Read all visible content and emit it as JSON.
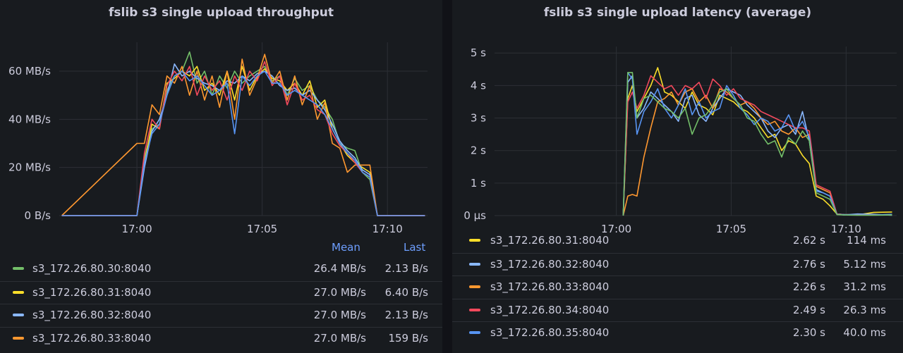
{
  "panels": {
    "throughput": {
      "title": "fslib s3 single upload throughput",
      "legend_headers": {
        "mean": "Mean",
        "last": "Last"
      },
      "legend": [
        {
          "name": "s3_172.26.80.30:8040",
          "mean": "26.4 MB/s",
          "last": "2.13 B/s",
          "color": "#73bf69"
        },
        {
          "name": "s3_172.26.80.31:8040",
          "mean": "27.0 MB/s",
          "last": "6.40 B/s",
          "color": "#fade2a"
        },
        {
          "name": "s3_172.26.80.32:8040",
          "mean": "27.0 MB/s",
          "last": "2.13 B/s",
          "color": "#8ab8ff"
        },
        {
          "name": "s3_172.26.80.33:8040",
          "mean": "27.0 MB/s",
          "last": "159 B/s",
          "color": "#ff9830"
        }
      ]
    },
    "latency": {
      "title": "fslib s3 single upload latency (average)",
      "legend": [
        {
          "name": "s3_172.26.80.31:8040",
          "mean": "2.62 s",
          "last": "114 ms",
          "color": "#fade2a"
        },
        {
          "name": "s3_172.26.80.32:8040",
          "mean": "2.76 s",
          "last": "5.12 ms",
          "color": "#8ab8ff"
        },
        {
          "name": "s3_172.26.80.33:8040",
          "mean": "2.26 s",
          "last": "31.2 ms",
          "color": "#ff9830"
        },
        {
          "name": "s3_172.26.80.34:8040",
          "mean": "2.49 s",
          "last": "26.3 ms",
          "color": "#f2495c"
        },
        {
          "name": "s3_172.26.80.35:8040",
          "mean": "2.30 s",
          "last": "40.0 ms",
          "color": "#5794f2"
        }
      ]
    }
  },
  "chart_data": [
    {
      "type": "line",
      "title": "fslib s3 single upload throughput",
      "xlabel": "",
      "ylabel": "",
      "x_ticks": [
        "17:00",
        "17:05",
        "17:10"
      ],
      "y_ticks": [
        "0 B/s",
        "20 MB/s",
        "40 MB/s",
        "60 MB/s"
      ],
      "y_tick_values": [
        0,
        20,
        40,
        60
      ],
      "ylim": [
        0,
        72
      ],
      "xlim_min": [
        -3.1,
        11.6
      ],
      "x_tick_values": [
        0,
        5,
        10
      ],
      "grid": true,
      "legend_position": "bottom",
      "x": [
        -3,
        0,
        0.3,
        0.6,
        0.9,
        1.2,
        1.5,
        1.8,
        2.1,
        2.4,
        2.7,
        3.0,
        3.3,
        3.6,
        3.9,
        4.2,
        4.5,
        4.8,
        5.1,
        5.4,
        5.7,
        6.0,
        6.3,
        6.6,
        6.9,
        7.2,
        7.5,
        7.8,
        8.1,
        8.4,
        8.7,
        9.0,
        9.3,
        9.6,
        9.9,
        11.5
      ],
      "series": [
        {
          "name": "s3_172.26.80.30:8040",
          "values": [
            0,
            0,
            24,
            36,
            38,
            52,
            58,
            60,
            68,
            55,
            60,
            50,
            58,
            53,
            60,
            55,
            58,
            60,
            62,
            56,
            58,
            50,
            57,
            52,
            54,
            48,
            45,
            40,
            30,
            28,
            27,
            18,
            15,
            0,
            0,
            0
          ]
        },
        {
          "name": "s3_172.26.80.31:8040",
          "values": [
            0,
            0,
            22,
            38,
            36,
            55,
            57,
            60,
            58,
            62,
            52,
            55,
            50,
            60,
            48,
            62,
            52,
            58,
            61,
            57,
            56,
            52,
            55,
            50,
            56,
            45,
            48,
            36,
            30,
            25,
            22,
            20,
            18,
            0,
            0,
            0
          ]
        },
        {
          "name": "s3_172.26.80.32:8040",
          "values": [
            0,
            0,
            20,
            35,
            40,
            50,
            63,
            58,
            60,
            57,
            55,
            54,
            52,
            56,
            55,
            58,
            56,
            59,
            60,
            58,
            54,
            52,
            53,
            50,
            52,
            48,
            44,
            38,
            31,
            27,
            24,
            19,
            17,
            0,
            0,
            0
          ]
        },
        {
          "name": "s3_172.26.80.33:8040",
          "values": [
            0,
            30,
            30,
            46,
            42,
            58,
            55,
            62,
            50,
            60,
            48,
            58,
            45,
            60,
            40,
            65,
            50,
            57,
            67,
            55,
            60,
            48,
            58,
            46,
            54,
            40,
            47,
            30,
            28,
            18,
            21,
            21,
            21,
            0,
            0,
            0
          ]
        },
        {
          "name": "",
          "color": "#f2495c",
          "values": [
            0,
            0,
            26,
            40,
            36,
            54,
            60,
            56,
            62,
            50,
            58,
            52,
            56,
            48,
            58,
            52,
            60,
            56,
            64,
            54,
            58,
            46,
            55,
            48,
            50,
            44,
            42,
            34,
            29,
            26,
            22,
            18,
            16,
            0,
            0,
            0
          ]
        },
        {
          "name": "",
          "color": "#5794f2",
          "values": [
            0,
            0,
            22,
            34,
            38,
            50,
            58,
            60,
            56,
            58,
            54,
            50,
            52,
            55,
            34,
            58,
            54,
            58,
            60,
            55,
            55,
            50,
            52,
            50,
            48,
            46,
            42,
            36,
            30,
            26,
            23,
            18,
            16,
            0,
            0,
            0
          ]
        }
      ]
    },
    {
      "type": "line",
      "title": "fslib s3 single upload latency (average)",
      "xlabel": "",
      "ylabel": "",
      "x_ticks": [
        "17:00",
        "17:05",
        "17:10"
      ],
      "x_tick_values": [
        0,
        5,
        10
      ],
      "y_ticks": [
        "0 µs",
        "1 s",
        "2 s",
        "3 s",
        "4 s",
        "5 s"
      ],
      "y_tick_values": [
        0,
        1,
        2,
        3,
        4,
        5
      ],
      "ylim": [
        0,
        5.2
      ],
      "xlim_min": [
        -5.3,
        12.2
      ],
      "grid": true,
      "legend_position": "bottom",
      "x": [
        0.3,
        0.5,
        0.7,
        0.9,
        1.2,
        1.5,
        1.8,
        2.1,
        2.4,
        2.7,
        3.0,
        3.3,
        3.6,
        3.9,
        4.2,
        4.5,
        4.8,
        5.1,
        5.4,
        5.7,
        6.0,
        6.3,
        6.6,
        6.9,
        7.2,
        7.5,
        7.8,
        8.1,
        8.4,
        8.7,
        9.0,
        9.3,
        9.6,
        9.9,
        10.5,
        11.2,
        12.0
      ],
      "series": [
        {
          "name": "s3_172.26.80.31:8040",
          "values": [
            0,
            3.6,
            4.0,
            3.2,
            3.6,
            4.0,
            4.55,
            3.8,
            3.7,
            3.5,
            3.3,
            3.8,
            3.4,
            3.3,
            3.1,
            3.7,
            3.6,
            3.5,
            3.3,
            3.2,
            3.0,
            2.7,
            2.4,
            2.5,
            2.0,
            2.3,
            2.2,
            1.85,
            1.6,
            0.6,
            0.5,
            0.3,
            0.05,
            0.03,
            0.02,
            0.1,
            0.11
          ]
        },
        {
          "name": "s3_172.26.80.32:8040",
          "values": [
            0,
            4.1,
            4.3,
            3.0,
            3.3,
            3.8,
            3.6,
            3.4,
            3.2,
            2.9,
            3.6,
            3.7,
            3.1,
            2.9,
            3.3,
            3.6,
            3.9,
            3.8,
            3.7,
            3.4,
            3.2,
            3.0,
            2.6,
            2.4,
            2.7,
            2.8,
            2.5,
            3.2,
            2.3,
            0.8,
            0.7,
            0.6,
            0.05,
            0.02,
            0.05,
            0.04,
            0.01
          ]
        },
        {
          "name": "s3_172.26.80.33:8040",
          "values": [
            0,
            0.6,
            0.65,
            0.6,
            1.8,
            2.7,
            3.5,
            3.6,
            3.8,
            3.4,
            3.8,
            3.9,
            3.5,
            3.7,
            3.3,
            3.9,
            3.8,
            3.6,
            3.4,
            3.5,
            3.3,
            3.0,
            2.8,
            2.9,
            2.6,
            2.5,
            2.7,
            2.4,
            2.5,
            0.9,
            0.8,
            0.7,
            0.05,
            0.03,
            0.02,
            0.02,
            0.03
          ]
        },
        {
          "name": "s3_172.26.80.34:8040",
          "values": [
            0,
            3.5,
            3.8,
            3.3,
            3.7,
            4.3,
            4.1,
            3.9,
            4.0,
            3.7,
            4.0,
            3.9,
            4.1,
            3.6,
            4.2,
            4.0,
            3.7,
            3.9,
            3.6,
            3.5,
            3.4,
            3.2,
            3.1,
            3.0,
            2.9,
            2.8,
            2.7,
            2.7,
            2.6,
            0.95,
            0.85,
            0.75,
            0.05,
            0.03,
            0.02,
            0.02,
            0.03
          ]
        },
        {
          "name": "s3_172.26.80.35:8040",
          "values": [
            0,
            4.4,
            4.2,
            2.5,
            3.2,
            3.5,
            3.9,
            3.3,
            3.0,
            3.4,
            3.9,
            3.1,
            3.5,
            3.0,
            3.2,
            3.3,
            4.0,
            3.7,
            3.3,
            3.1,
            2.8,
            3.0,
            2.9,
            2.6,
            2.7,
            3.1,
            2.6,
            2.9,
            2.4,
            0.75,
            0.7,
            0.6,
            0.04,
            0.03,
            0.02,
            0.02,
            0.04
          ]
        },
        {
          "name": "",
          "color": "#73bf69",
          "values": [
            0,
            4.4,
            4.4,
            3.0,
            3.6,
            3.7,
            3.5,
            3.3,
            3.2,
            3.0,
            3.3,
            2.5,
            3.0,
            3.1,
            3.4,
            3.8,
            3.9,
            3.6,
            3.4,
            3.0,
            2.9,
            2.5,
            2.2,
            2.3,
            1.8,
            2.4,
            2.2,
            2.6,
            2.3,
            0.7,
            0.6,
            0.5,
            0.03,
            0.02,
            0.01,
            0.01,
            0.02
          ]
        }
      ]
    }
  ]
}
